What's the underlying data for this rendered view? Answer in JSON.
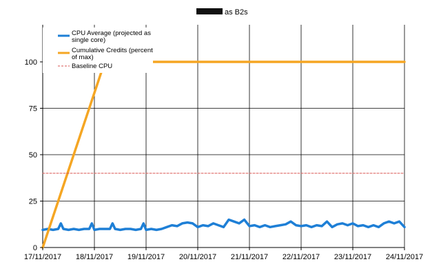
{
  "chart_data": {
    "type": "line",
    "title": "as B2s",
    "title_redacted": true,
    "xlabel": "",
    "ylabel": "",
    "ylim": [
      0,
      120
    ],
    "y_ticks": [
      0,
      25,
      50,
      75,
      100
    ],
    "y_tick_labels": [
      "0",
      "25",
      "50",
      "75",
      "100"
    ],
    "x_ticks": [
      "17/11/2017",
      "18/11/2017",
      "19/11/2017",
      "20/11/2017",
      "21/11/2017",
      "22/11/2017",
      "23/11/2017",
      "24/11/2017"
    ],
    "xlim_days": [
      0,
      7
    ],
    "grid": true,
    "legend_position": "top-left",
    "series": [
      {
        "name": "CPU Average (projected as single core)",
        "color": "#1e7fd6",
        "x_days": [
          0,
          0.1,
          0.2,
          0.3,
          0.35,
          0.4,
          0.5,
          0.6,
          0.7,
          0.8,
          0.9,
          0.95,
          1.0,
          1.1,
          1.2,
          1.3,
          1.35,
          1.4,
          1.5,
          1.6,
          1.7,
          1.8,
          1.9,
          1.95,
          2.0,
          2.1,
          2.2,
          2.3,
          2.4,
          2.5,
          2.6,
          2.7,
          2.8,
          2.9,
          3.0,
          3.1,
          3.2,
          3.3,
          3.4,
          3.5,
          3.6,
          3.7,
          3.8,
          3.9,
          4.0,
          4.1,
          4.2,
          4.3,
          4.4,
          4.5,
          4.6,
          4.7,
          4.8,
          4.9,
          5.0,
          5.1,
          5.2,
          5.3,
          5.4,
          5.5,
          5.6,
          5.7,
          5.8,
          5.9,
          6.0,
          6.1,
          6.2,
          6.3,
          6.4,
          6.5,
          6.6,
          6.7,
          6.8,
          6.9,
          7.0
        ],
        "values": [
          9.5,
          10,
          9.5,
          10,
          13,
          10,
          9.5,
          10,
          9.5,
          10,
          10,
          13,
          9.5,
          10,
          10,
          10,
          13,
          10,
          9.5,
          10,
          10,
          9.5,
          10,
          13,
          9.5,
          10,
          9.5,
          10,
          11,
          12,
          11.5,
          13,
          13.5,
          13,
          11,
          12,
          11.5,
          13,
          12,
          11,
          15,
          14,
          13,
          15,
          11.5,
          12,
          11,
          12,
          11,
          11.5,
          12,
          12.5,
          14,
          12,
          11.5,
          12,
          11,
          12,
          11.5,
          14,
          11,
          12.5,
          13,
          12,
          13,
          11.5,
          12,
          11,
          12,
          11,
          13,
          14,
          13,
          14,
          11
        ]
      },
      {
        "name": "Cumulative Credits (percent of max)",
        "color": "#f5a623",
        "x_days": [
          0,
          1.2,
          2.0,
          7.0
        ],
        "values": [
          0,
          100,
          100,
          100
        ]
      },
      {
        "name": "Baseline CPU",
        "color": "#d9534f",
        "x_days": [
          0,
          7.0
        ],
        "values": [
          40,
          40
        ]
      }
    ]
  }
}
